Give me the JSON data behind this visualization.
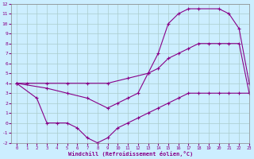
{
  "xlabel": "Windchill (Refroidissement éolien,°C)",
  "line_color": "#880088",
  "bg_color": "#cceeff",
  "grid_color": "#aacccc",
  "xlim": [
    -0.5,
    23
  ],
  "ylim": [
    -2,
    12
  ],
  "xticks": [
    0,
    1,
    2,
    3,
    4,
    5,
    6,
    7,
    8,
    9,
    10,
    11,
    12,
    13,
    14,
    15,
    16,
    17,
    18,
    19,
    20,
    21,
    22,
    23
  ],
  "yticks": [
    -2,
    -1,
    0,
    1,
    2,
    3,
    4,
    5,
    6,
    7,
    8,
    9,
    10,
    11,
    12
  ],
  "line1_x": [
    0,
    1,
    3,
    5,
    7,
    9,
    11,
    13,
    14,
    15,
    16,
    17,
    18,
    19,
    20,
    21,
    22,
    23
  ],
  "line1_y": [
    4,
    4,
    4,
    4,
    4,
    4,
    4.5,
    5,
    5.5,
    6.5,
    7,
    7.5,
    8,
    8,
    8,
    8,
    8,
    3
  ],
  "line2_x": [
    0,
    3,
    5,
    7,
    9,
    10,
    11,
    12,
    13,
    14,
    15,
    16,
    17,
    18,
    20,
    21,
    22,
    23
  ],
  "line2_y": [
    4,
    3.5,
    3,
    2.5,
    1.5,
    2,
    2.5,
    3,
    5,
    7,
    10,
    11,
    11.5,
    11.5,
    11.5,
    11,
    9.5,
    4
  ],
  "line3_x": [
    0,
    2,
    3,
    4,
    5,
    6,
    7,
    8,
    9,
    10,
    11,
    12,
    13,
    14,
    15,
    16,
    17,
    18,
    19,
    20,
    21,
    22,
    23
  ],
  "line3_y": [
    4,
    2.5,
    0,
    0,
    0,
    -0.5,
    -1.5,
    -2,
    -1.5,
    -0.5,
    0,
    0.5,
    1,
    1.5,
    2,
    2.5,
    3,
    3,
    3,
    3,
    3,
    3,
    3
  ]
}
